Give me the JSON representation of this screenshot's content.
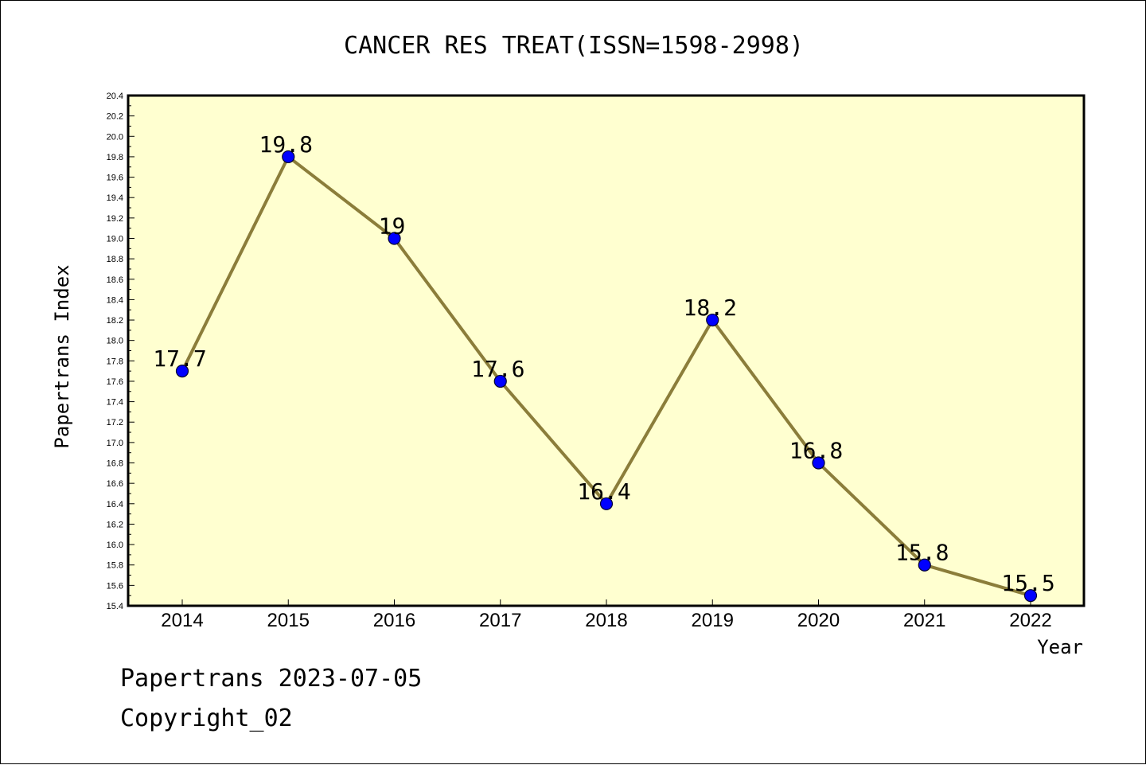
{
  "chart_data": {
    "type": "line",
    "title": "CANCER RES TREAT(ISSN=1598-2998)",
    "xlabel": "Year",
    "ylabel": "Papertrans Index",
    "categories": [
      "2014",
      "2015",
      "2016",
      "2017",
      "2018",
      "2019",
      "2020",
      "2021",
      "2022"
    ],
    "series": [
      {
        "values": [
          17.7,
          19.8,
          19.0,
          17.6,
          16.4,
          18.2,
          16.8,
          15.8,
          15.5
        ],
        "labels": [
          "17.7",
          "19.8",
          "19",
          "17.6",
          "16.4",
          "18.2",
          "16.8",
          "15.8",
          "15.5"
        ]
      }
    ],
    "ylim": [
      15.4,
      20.4
    ],
    "yticks": [
      "15.4",
      "15.6",
      "15.8",
      "16.0",
      "16.2",
      "16.4",
      "16.6",
      "16.8",
      "17.0",
      "17.2",
      "17.4",
      "17.6",
      "17.8",
      "18.0",
      "18.2",
      "18.4",
      "18.6",
      "18.8",
      "19.0",
      "19.2",
      "19.4",
      "19.6",
      "19.8",
      "20.0",
      "20.2",
      "20.4"
    ],
    "grid": false,
    "colors": {
      "plot_background": "#ffffd0",
      "line": "#8b7d3a",
      "marker": "#0000ff",
      "marker_edge": "#000033"
    }
  },
  "footer": {
    "stamp": "Papertrans 2023-07-05",
    "copyright": "Copyright_02"
  }
}
